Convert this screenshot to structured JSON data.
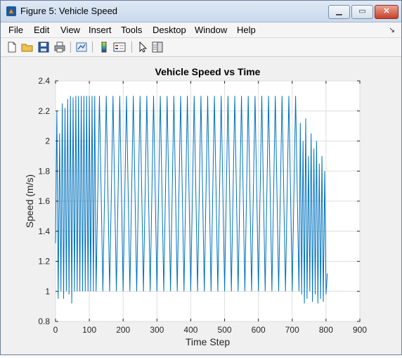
{
  "window": {
    "title": "Figure 5: Vehicle Speed",
    "controls": {
      "minimize": "▁",
      "maximize": "▭",
      "close": "✕"
    }
  },
  "menu": {
    "items": [
      "File",
      "Edit",
      "View",
      "Insert",
      "Tools",
      "Desktop",
      "Window",
      "Help"
    ],
    "dock_glyph": "↘"
  },
  "toolbar": {
    "icons": [
      "new-figure-icon",
      "open-file-icon",
      "save-icon",
      "print-icon",
      "link-plot-icon",
      "colorbar-icon",
      "legend-icon",
      "pointer-icon",
      "property-editor-icon"
    ]
  },
  "chart_data": {
    "type": "line",
    "title": "Vehicle Speed vs Time",
    "xlabel": "Time Step",
    "ylabel": "Speed (m/s)",
    "xlim": [
      0,
      900
    ],
    "ylim": [
      0.8,
      2.4
    ],
    "xticks": [
      0,
      100,
      200,
      300,
      400,
      500,
      600,
      700,
      800,
      900
    ],
    "yticks": [
      0.8,
      1,
      1.2,
      1.4,
      1.6,
      1.8,
      2,
      2.2,
      2.4
    ],
    "ytick_labels": [
      "0.8",
      "1",
      "1.2",
      "1.4",
      "1.6",
      "1.8",
      "2",
      "2.2",
      "2.4"
    ],
    "grid": true,
    "line_color": "#0072bd",
    "series": [
      {
        "x": [
          0,
          4,
          8,
          12,
          16,
          20,
          24,
          28,
          32,
          36,
          40,
          44,
          48,
          52,
          56,
          60,
          64,
          68,
          72,
          76,
          80,
          84,
          88,
          92,
          96,
          100,
          104,
          108,
          112,
          116,
          120,
          130,
          140,
          150,
          160,
          170,
          180,
          190,
          200,
          210,
          220,
          230,
          240,
          250,
          260,
          270,
          280,
          290,
          300,
          310,
          320,
          330,
          340,
          350,
          360,
          370,
          380,
          390,
          400,
          410,
          420,
          430,
          440,
          450,
          460,
          470,
          480,
          490,
          500,
          510,
          520,
          530,
          540,
          550,
          560,
          570,
          580,
          590,
          600,
          610,
          620,
          630,
          640,
          650,
          660,
          670,
          680,
          690,
          700,
          710,
          720,
          724,
          728,
          732,
          736,
          740,
          744,
          748,
          752,
          756,
          760,
          764,
          768,
          772,
          776,
          780,
          784,
          788,
          792,
          796,
          800,
          804
        ],
        "y": [
          1.32,
          2.2,
          0.95,
          2.05,
          1.0,
          2.25,
          0.95,
          2.22,
          1.0,
          2.28,
          0.98,
          2.3,
          0.92,
          2.29,
          1.0,
          2.3,
          1.0,
          2.3,
          1.0,
          2.3,
          1.0,
          2.3,
          1.0,
          2.3,
          1.0,
          2.3,
          1.0,
          2.3,
          1.0,
          2.3,
          1.0,
          2.3,
          1.0,
          2.3,
          1.0,
          2.3,
          1.0,
          2.3,
          1.0,
          2.3,
          1.0,
          2.3,
          1.0,
          2.3,
          1.0,
          2.3,
          1.0,
          2.3,
          1.0,
          2.3,
          1.0,
          2.3,
          1.0,
          2.3,
          1.0,
          2.3,
          1.0,
          2.3,
          1.0,
          2.3,
          1.0,
          2.3,
          1.0,
          2.3,
          1.0,
          2.3,
          1.0,
          2.3,
          1.0,
          2.3,
          1.0,
          2.3,
          1.0,
          2.3,
          1.0,
          2.3,
          1.0,
          2.3,
          1.0,
          2.3,
          1.0,
          2.3,
          1.0,
          2.3,
          1.0,
          2.3,
          1.0,
          2.3,
          1.0,
          2.3,
          1.0,
          2.12,
          0.98,
          2.0,
          0.92,
          2.15,
          0.95,
          1.9,
          1.0,
          2.05,
          0.93,
          1.95,
          0.98,
          2.0,
          0.92,
          1.85,
          0.95,
          1.9,
          0.93,
          1.8,
          0.98,
          1.12
        ]
      }
    ]
  }
}
